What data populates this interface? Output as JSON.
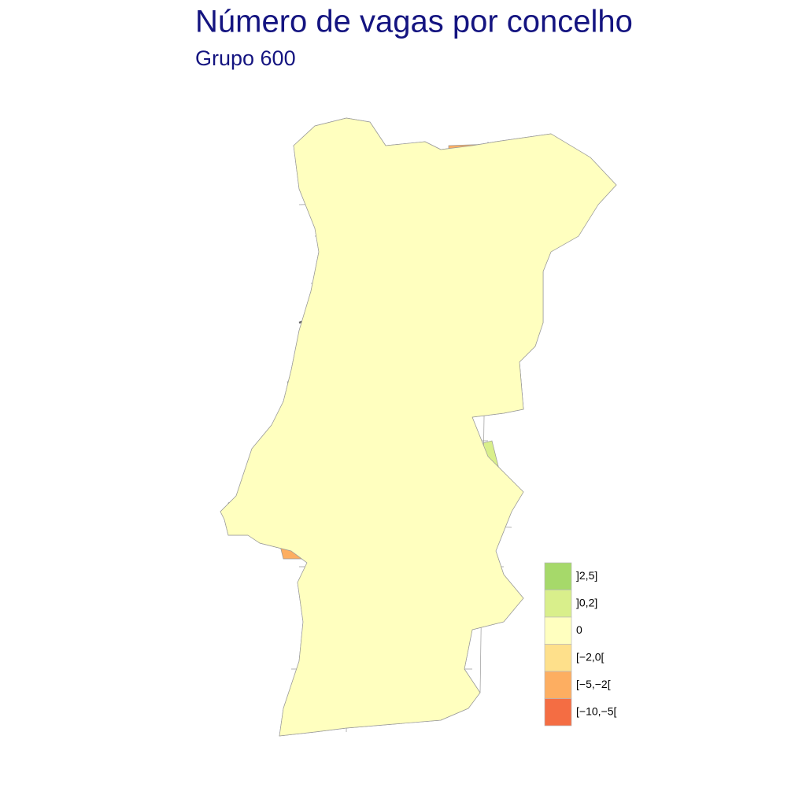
{
  "title": "Número de vagas por concelho",
  "subtitle": "Grupo 600",
  "legend": {
    "items": [
      {
        "label": "]2,5]",
        "color": "#a6d96a"
      },
      {
        "label": "]0,2]",
        "color": "#d9ef8b"
      },
      {
        "label": "0",
        "color": "#ffffbf"
      },
      {
        "label": "[−2,0[",
        "color": "#fee08b"
      },
      {
        "label": "[−5,−2[",
        "color": "#fdae61"
      },
      {
        "label": "[−10,−5[",
        "color": "#f46d43"
      }
    ]
  }
}
